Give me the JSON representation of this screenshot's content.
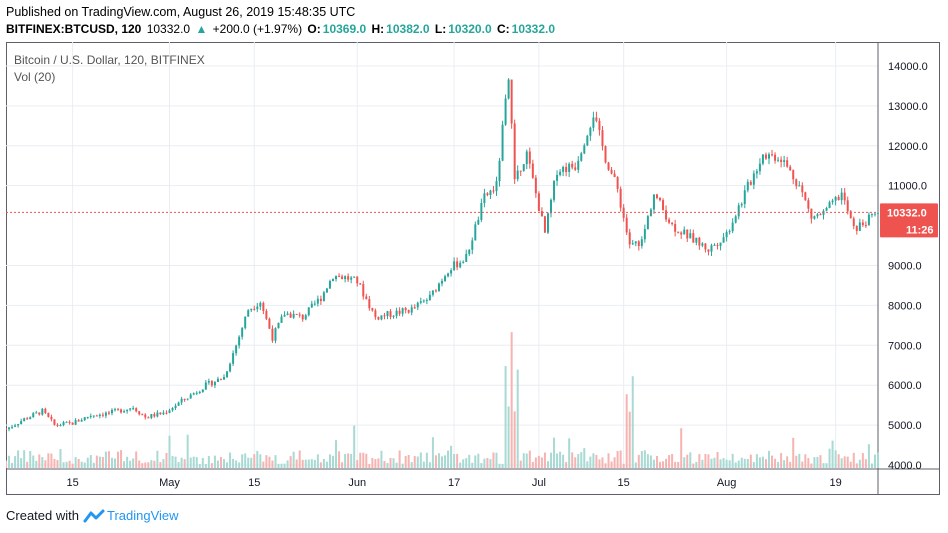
{
  "header": {
    "published": "Published on TradingView.com, August 26, 2019 15:48:35 UTC",
    "symbol": "BITFINEX:BTCUSD, 120",
    "last": "10332.0",
    "change": "+200.0 (+1.97%)",
    "open_label": "O:",
    "open": "10369.0",
    "high_label": "H:",
    "high": "10382.0",
    "low_label": "L:",
    "low": "10320.0",
    "close_label": "C:",
    "close": "10332.0"
  },
  "legend": {
    "title": "Bitcoin / U.S. Dollar, 120, BITFINEX",
    "volume": "Vol (20)"
  },
  "footer": {
    "created_with": "Created with",
    "brand": "TradingView"
  },
  "colors": {
    "up": "#26a69a",
    "down": "#ef5350",
    "vol_up": "#a8d9d3",
    "vol_down": "#f5b3b1",
    "price_line": "#ef5350",
    "grid": "#e9edf2"
  },
  "chart_data": {
    "type": "candlestick",
    "price_axis": {
      "ticks": [
        "14000.0",
        "13000.0",
        "12000.0",
        "11000.0",
        "9000.0",
        "8000.0",
        "7000.0",
        "6000.0",
        "5000.0",
        "4000.0"
      ],
      "tick_values": [
        14000,
        13000,
        12000,
        11000,
        9000,
        8000,
        7000,
        6000,
        5000,
        4000
      ],
      "range": [
        3900,
        14600
      ]
    },
    "time_axis": {
      "labels": [
        "15",
        "May",
        "15",
        "Jun",
        "17",
        "Jul",
        "15",
        "Aug",
        "19"
      ],
      "label_dates": [
        "2019-04-15",
        "2019-05-01",
        "2019-05-15",
        "2019-06-01",
        "2019-06-17",
        "2019-07-01",
        "2019-07-15",
        "2019-08-01",
        "2019-08-19"
      ],
      "range": [
        "2019-04-04",
        "2019-08-26"
      ]
    },
    "last_price": {
      "value": 10332.0,
      "label": "10332.0",
      "countdown": "11:26"
    },
    "price_path": [
      [
        "2019-04-04",
        4900
      ],
      [
        "2019-04-07",
        5150
      ],
      [
        "2019-04-10",
        5350
      ],
      [
        "2019-04-12",
        5000
      ],
      [
        "2019-04-15",
        5050
      ],
      [
        "2019-04-18",
        5250
      ],
      [
        "2019-04-21",
        5300
      ],
      [
        "2019-04-25",
        5450
      ],
      [
        "2019-04-27",
        5200
      ],
      [
        "2019-04-30",
        5300
      ],
      [
        "2019-05-04",
        5700
      ],
      [
        "2019-05-07",
        6000
      ],
      [
        "2019-05-10",
        6200
      ],
      [
        "2019-05-12",
        7000
      ],
      [
        "2019-05-14",
        7900
      ],
      [
        "2019-05-16",
        8100
      ],
      [
        "2019-05-18",
        7200
      ],
      [
        "2019-05-20",
        7800
      ],
      [
        "2019-05-23",
        7700
      ],
      [
        "2019-05-26",
        8200
      ],
      [
        "2019-05-28",
        8750
      ],
      [
        "2019-05-30",
        8700
      ],
      [
        "2019-06-01",
        8600
      ],
      [
        "2019-06-04",
        7700
      ],
      [
        "2019-06-07",
        7800
      ],
      [
        "2019-06-10",
        7900
      ],
      [
        "2019-06-13",
        8200
      ],
      [
        "2019-06-16",
        8900
      ],
      [
        "2019-06-19",
        9200
      ],
      [
        "2019-06-22",
        10700
      ],
      [
        "2019-06-24",
        11000
      ],
      [
        "2019-06-26",
        13800
      ],
      [
        "2019-06-27",
        11200
      ],
      [
        "2019-06-29",
        11800
      ],
      [
        "2019-07-02",
        9800
      ],
      [
        "2019-07-04",
        11400
      ],
      [
        "2019-07-07",
        11500
      ],
      [
        "2019-07-10",
        12800
      ],
      [
        "2019-07-12",
        11700
      ],
      [
        "2019-07-14",
        10900
      ],
      [
        "2019-07-16",
        9500
      ],
      [
        "2019-07-18",
        9600
      ],
      [
        "2019-07-20",
        10800
      ],
      [
        "2019-07-23",
        10000
      ],
      [
        "2019-07-26",
        9700
      ],
      [
        "2019-07-29",
        9400
      ],
      [
        "2019-08-01",
        9800
      ],
      [
        "2019-08-04",
        10800
      ],
      [
        "2019-08-07",
        11800
      ],
      [
        "2019-08-10",
        11700
      ],
      [
        "2019-08-13",
        11000
      ],
      [
        "2019-08-15",
        10200
      ],
      [
        "2019-08-17",
        10300
      ],
      [
        "2019-08-20",
        10800
      ],
      [
        "2019-08-22",
        9900
      ],
      [
        "2019-08-24",
        10100
      ],
      [
        "2019-08-26",
        10332
      ]
    ],
    "volume_spikes": [
      "2019-06-26",
      "2019-06-27",
      "2019-07-16"
    ]
  }
}
